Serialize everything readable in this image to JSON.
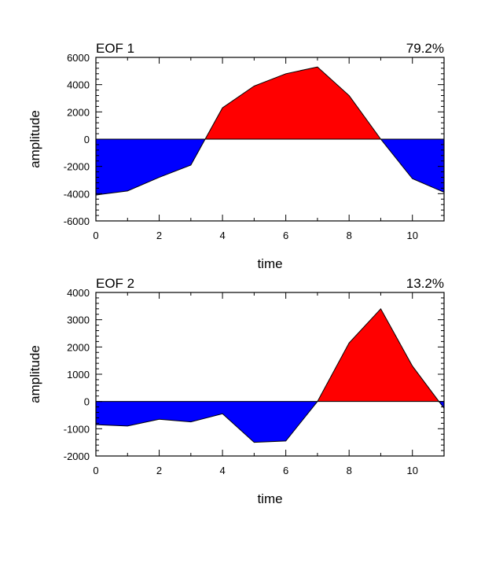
{
  "chart_data": [
    {
      "type": "area",
      "title_left": "EOF 1",
      "title_right": "79.2%",
      "xlabel": "time",
      "ylabel": "amplitude",
      "xlim": [
        0,
        11
      ],
      "ylim": [
        -6000,
        6000
      ],
      "xticks": [
        0,
        2,
        4,
        6,
        8,
        10
      ],
      "xtick_labels": [
        "0",
        "2",
        "4",
        "6",
        "8",
        "10"
      ],
      "yticks": [
        -6000,
        -4000,
        -2000,
        0,
        2000,
        4000,
        6000
      ],
      "ytick_labels": [
        "-6000",
        "-4000",
        "-2000",
        "0",
        "2000",
        "4000",
        "6000"
      ],
      "x": [
        0,
        1,
        2,
        3,
        4,
        5,
        6,
        7,
        8,
        9,
        10,
        11
      ],
      "values": [
        -4100,
        -3800,
        -2800,
        -1900,
        2300,
        3900,
        4800,
        5300,
        3200,
        0,
        -2900,
        -3900
      ],
      "positive_color": "#ff0000",
      "negative_color": "#0000ff",
      "grid": false
    },
    {
      "type": "area",
      "title_left": "EOF 2",
      "title_right": "13.2%",
      "xlabel": "time",
      "ylabel": "amplitude",
      "xlim": [
        0,
        11
      ],
      "ylim": [
        -2000,
        4000
      ],
      "xticks": [
        0,
        2,
        4,
        6,
        8,
        10
      ],
      "xtick_labels": [
        "0",
        "2",
        "4",
        "6",
        "8",
        "10"
      ],
      "yticks": [
        -2000,
        -1000,
        0,
        1000,
        2000,
        3000,
        4000
      ],
      "ytick_labels": [
        "-2000",
        "-1000",
        "0",
        "1000",
        "2000",
        "3000",
        "4000"
      ],
      "x": [
        0,
        1,
        2,
        3,
        4,
        5,
        6,
        7,
        8,
        9,
        10,
        11
      ],
      "values": [
        -850,
        -900,
        -650,
        -750,
        -450,
        -1500,
        -1450,
        0,
        2150,
        3400,
        1300,
        -250
      ],
      "positive_color": "#ff0000",
      "negative_color": "#0000ff",
      "grid": false
    }
  ]
}
